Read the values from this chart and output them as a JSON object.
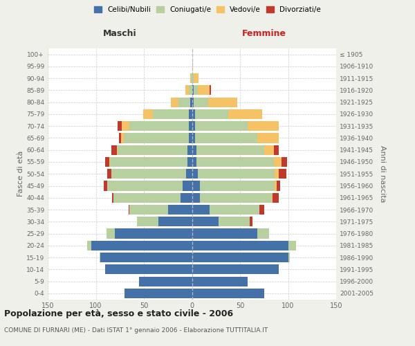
{
  "age_groups": [
    "0-4",
    "5-9",
    "10-14",
    "15-19",
    "20-24",
    "25-29",
    "30-34",
    "35-39",
    "40-44",
    "45-49",
    "50-54",
    "55-59",
    "60-64",
    "65-69",
    "70-74",
    "75-79",
    "80-84",
    "85-89",
    "90-94",
    "95-99",
    "100+"
  ],
  "birth_years": [
    "2001-2005",
    "1996-2000",
    "1991-1995",
    "1986-1990",
    "1981-1985",
    "1976-1980",
    "1971-1975",
    "1966-1970",
    "1961-1965",
    "1956-1960",
    "1951-1955",
    "1946-1950",
    "1941-1945",
    "1936-1940",
    "1931-1935",
    "1926-1930",
    "1921-1925",
    "1916-1920",
    "1911-1915",
    "1906-1910",
    "≤ 1905"
  ],
  "maschi_celibi": [
    70,
    55,
    90,
    95,
    105,
    80,
    35,
    25,
    12,
    10,
    6,
    5,
    5,
    3,
    3,
    3,
    2,
    0,
    0,
    0,
    0
  ],
  "maschi_coniugati": [
    0,
    0,
    0,
    1,
    4,
    9,
    22,
    40,
    70,
    78,
    78,
    80,
    72,
    68,
    62,
    38,
    12,
    3,
    1,
    0,
    0
  ],
  "maschi_vedovi": [
    0,
    0,
    0,
    0,
    0,
    0,
    0,
    0,
    0,
    0,
    0,
    1,
    1,
    3,
    8,
    10,
    8,
    4,
    1,
    0,
    0
  ],
  "maschi_divorziati": [
    0,
    0,
    0,
    0,
    0,
    0,
    0,
    1,
    1,
    4,
    4,
    4,
    6,
    2,
    4,
    0,
    0,
    0,
    0,
    0,
    0
  ],
  "femmine_nubili": [
    75,
    58,
    90,
    100,
    100,
    68,
    28,
    18,
    8,
    8,
    6,
    5,
    5,
    3,
    3,
    3,
    2,
    2,
    0,
    0,
    0
  ],
  "femmine_coniugate": [
    0,
    0,
    0,
    2,
    8,
    12,
    32,
    52,
    75,
    78,
    80,
    80,
    70,
    65,
    55,
    35,
    15,
    4,
    2,
    0,
    0
  ],
  "femmine_vedove": [
    0,
    0,
    0,
    0,
    0,
    0,
    0,
    0,
    1,
    2,
    4,
    8,
    10,
    22,
    32,
    35,
    30,
    12,
    5,
    1,
    0
  ],
  "femmine_divorziate": [
    0,
    0,
    0,
    0,
    0,
    0,
    3,
    5,
    6,
    4,
    8,
    6,
    5,
    0,
    0,
    0,
    0,
    2,
    0,
    0,
    0
  ],
  "color_celibi": "#4472a8",
  "color_coniugati": "#b8cfa0",
  "color_vedovi": "#f5c265",
  "color_divorziati": "#c0392b",
  "xlabel_maschi": "Maschi",
  "xlabel_femmine": "Femmine",
  "ylabel_left": "Fasce di età",
  "ylabel_right": "Anni di nascita",
  "title": "Popolazione per età, sesso e stato civile - 2006",
  "subtitle": "COMUNE DI FURNARI (ME) - Dati ISTAT 1° gennaio 2006 - Elaborazione TUTTITALIA.IT",
  "xlim": 150,
  "bg_color": "#f0f0ea",
  "plot_bg": "#ffffff",
  "legend_labels": [
    "Celibi/Nubili",
    "Coniugati/e",
    "Vedovi/e",
    "Divorziati/e"
  ]
}
